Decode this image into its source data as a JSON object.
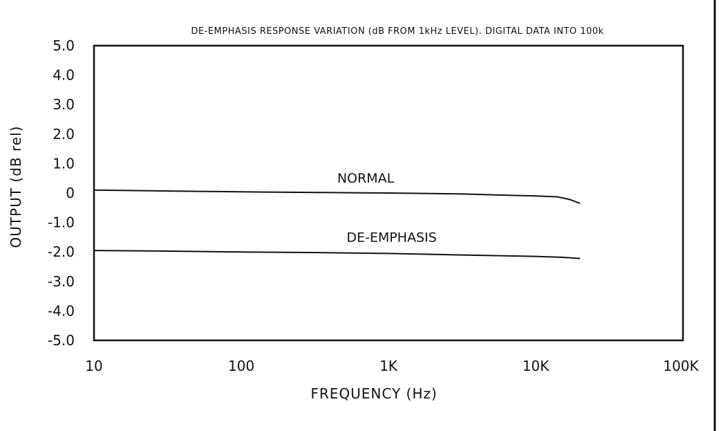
{
  "chart_data": {
    "type": "line",
    "title": "DE-EMPHASIS RESPONSE VARIATION (dB FROM 1kHz LEVEL). DIGITAL DATA INTO 100k",
    "xlabel": "FREQUENCY (Hz)",
    "ylabel": "OUTPUT (dB rel)",
    "xscale": "log",
    "xlim": [
      10,
      100000
    ],
    "ylim": [
      -5.0,
      5.0
    ],
    "grid": false,
    "x_ticks": [
      {
        "value": 10,
        "label": "10"
      },
      {
        "value": 100,
        "label": "100"
      },
      {
        "value": 1000,
        "label": "1K"
      },
      {
        "value": 10000,
        "label": "10K"
      },
      {
        "value": 100000,
        "label": "100K"
      }
    ],
    "y_ticks": [
      {
        "value": 5,
        "label": "5.0"
      },
      {
        "value": 4,
        "label": "4.0"
      },
      {
        "value": 3,
        "label": "3.0"
      },
      {
        "value": 2,
        "label": "2.0"
      },
      {
        "value": 1,
        "label": "1.0"
      },
      {
        "value": 0,
        "label": "0"
      },
      {
        "value": -1,
        "label": "-1.0"
      },
      {
        "value": -2,
        "label": "-2.0"
      },
      {
        "value": -3,
        "label": "-3.0"
      },
      {
        "value": -4,
        "label": "-4.0"
      },
      {
        "value": -5,
        "label": "-5.0"
      }
    ],
    "series": [
      {
        "name": "NORMAL",
        "label_at": {
          "x": 700,
          "y": 0.35
        },
        "x": [
          10,
          30,
          100,
          300,
          1000,
          3000,
          10000,
          14000,
          17000,
          20000
        ],
        "y": [
          0.1,
          0.07,
          0.04,
          0.02,
          0.0,
          -0.03,
          -0.1,
          -0.13,
          -0.22,
          -0.35
        ]
      },
      {
        "name": "DE-EMPHASIS",
        "label_at": {
          "x": 1050,
          "y": -1.65
        },
        "x": [
          10,
          30,
          100,
          300,
          1000,
          3000,
          10000,
          15000,
          20000
        ],
        "y": [
          -1.95,
          -1.97,
          -2.0,
          -2.02,
          -2.05,
          -2.1,
          -2.15,
          -2.18,
          -2.22
        ]
      }
    ]
  }
}
